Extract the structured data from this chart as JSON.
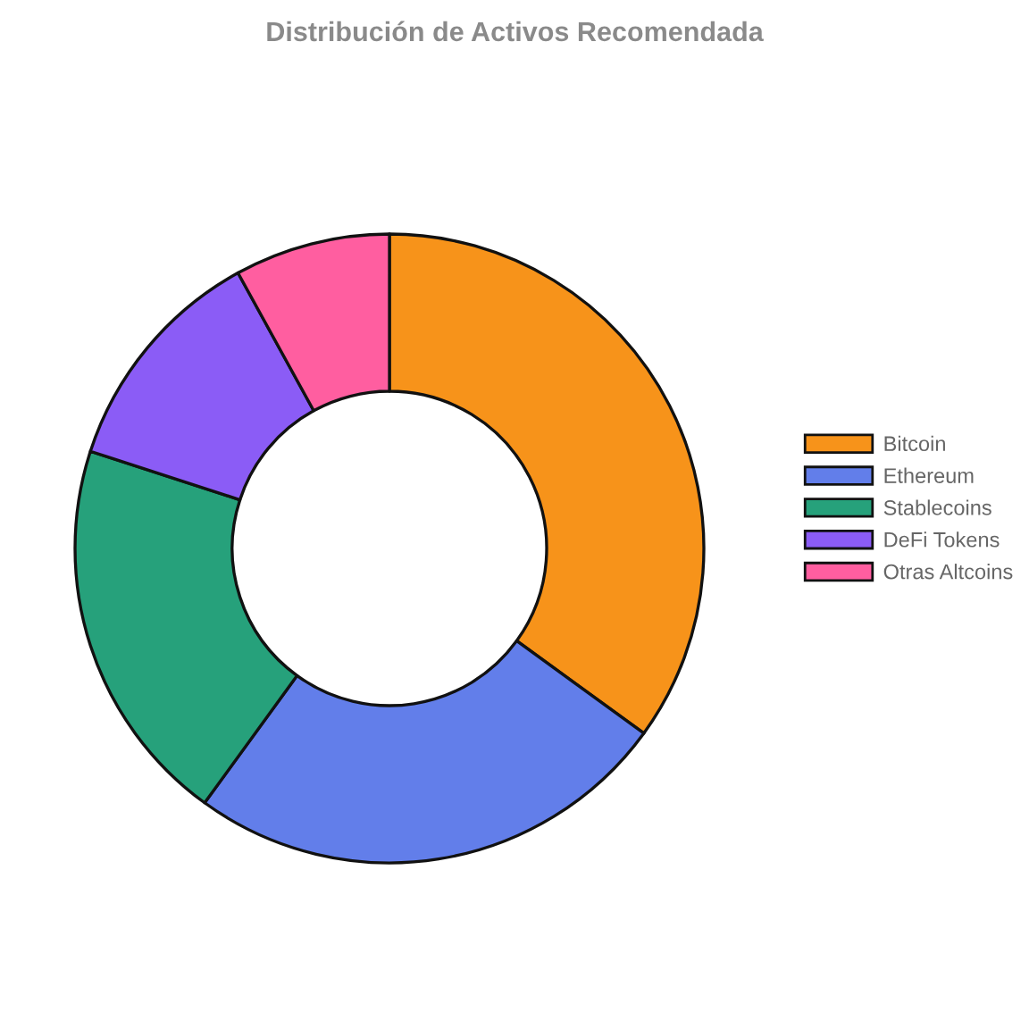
{
  "chart_data": {
    "type": "donut",
    "title": "Distribución de Activos Recomendada",
    "categories": [
      "Bitcoin",
      "Ethereum",
      "Stablecoins",
      "DeFi Tokens",
      "Otras Altcoins"
    ],
    "values": [
      35,
      25,
      20,
      12,
      8
    ],
    "colors": [
      "#f7931a",
      "#627eea",
      "#26a17b",
      "#8b5cf6",
      "#ff5ea0"
    ],
    "legend": "right"
  }
}
